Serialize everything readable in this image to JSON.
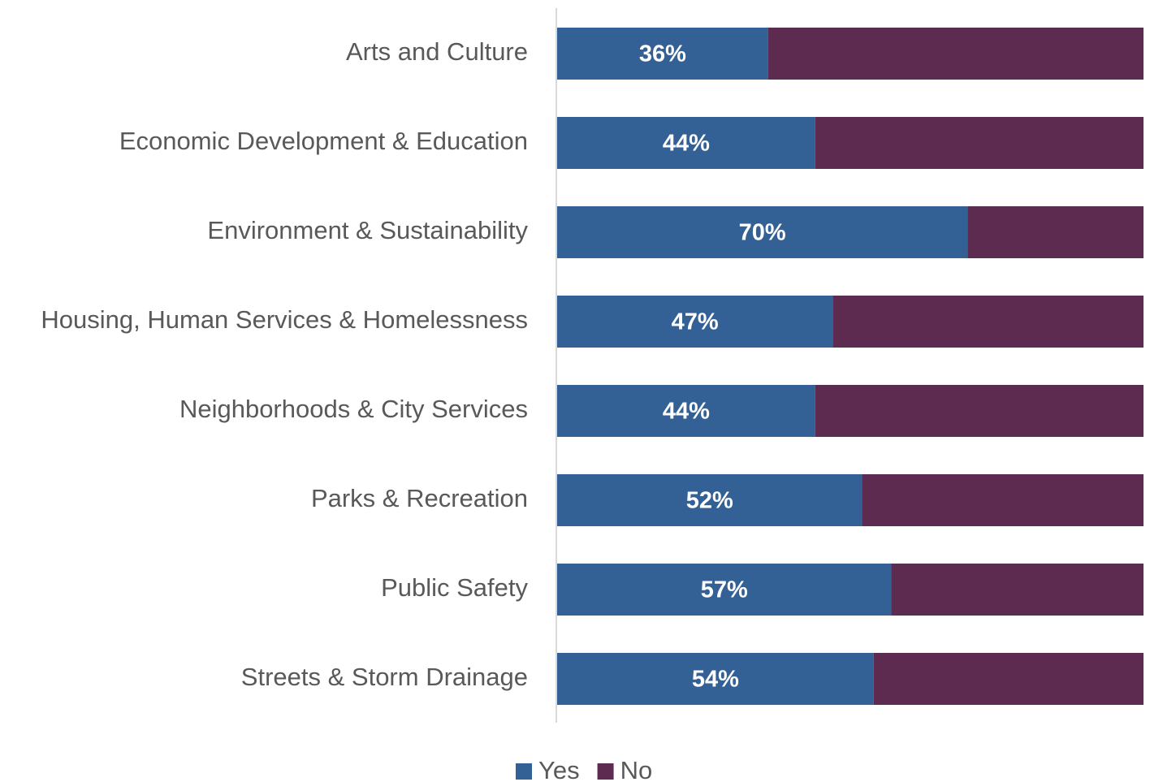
{
  "chart_data": {
    "type": "stacked-bar-horizontal",
    "categories": [
      "Arts and Culture",
      "Economic Development & Education",
      "Environment & Sustainability",
      "Housing, Human Services & Homelessness",
      "Neighborhoods & City Services",
      "Parks & Recreation",
      "Public Safety",
      "Streets & Storm Drainage"
    ],
    "series": [
      {
        "name": "Yes",
        "color": "#336195",
        "values": [
          36,
          44,
          70,
          47,
          44,
          52,
          57,
          54
        ],
        "value_labels": [
          "36%",
          "44%",
          "70%",
          "47%",
          "44%",
          "52%",
          "57%",
          "54%"
        ]
      },
      {
        "name": "No",
        "color": "#5e2b50",
        "values": [
          64,
          56,
          30,
          53,
          56,
          48,
          43,
          46
        ]
      }
    ],
    "xlim": [
      0,
      100
    ],
    "legend": "bottom"
  }
}
